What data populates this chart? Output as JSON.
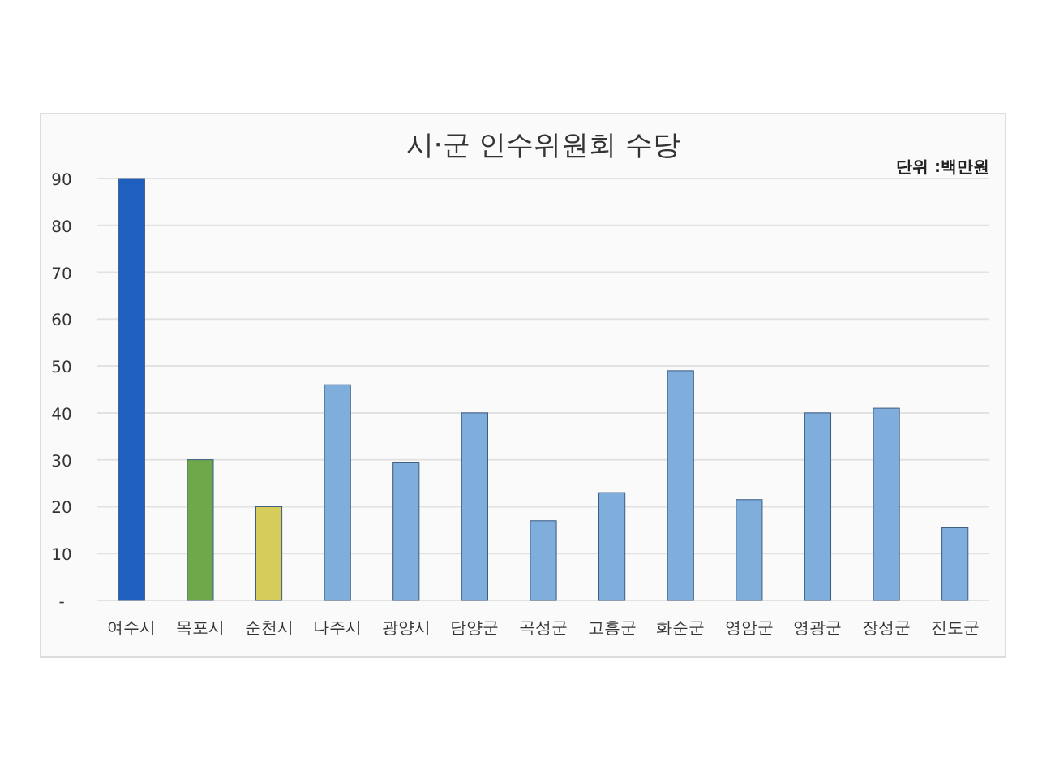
{
  "chart_data": {
    "type": "bar",
    "title": "시·군 인수위원회 수당",
    "annotations": [
      "단위 :백만원"
    ],
    "categories": [
      "여수시",
      "목포시",
      "순천시",
      "나주시",
      "광양시",
      "담양군",
      "곡성군",
      "고흥군",
      "화순군",
      "영암군",
      "영광군",
      "장성군",
      "진도군"
    ],
    "values": [
      90,
      30,
      20,
      46,
      29.5,
      40,
      17,
      23,
      49,
      21.5,
      40,
      41,
      15.5
    ],
    "colors": [
      "#1f5fbf",
      "#6fa84a",
      "#d6cc5a",
      "#7faedc",
      "#7faedc",
      "#7faedc",
      "#7faedc",
      "#7faedc",
      "#7faedc",
      "#7faedc",
      "#7faedc",
      "#7faedc",
      "#7faedc"
    ],
    "ylim": [
      0,
      90
    ],
    "yticks": [
      {
        "value": 0,
        "label": "-"
      },
      10,
      20,
      30,
      40,
      50,
      60,
      70,
      80,
      90
    ],
    "grid": "y"
  }
}
